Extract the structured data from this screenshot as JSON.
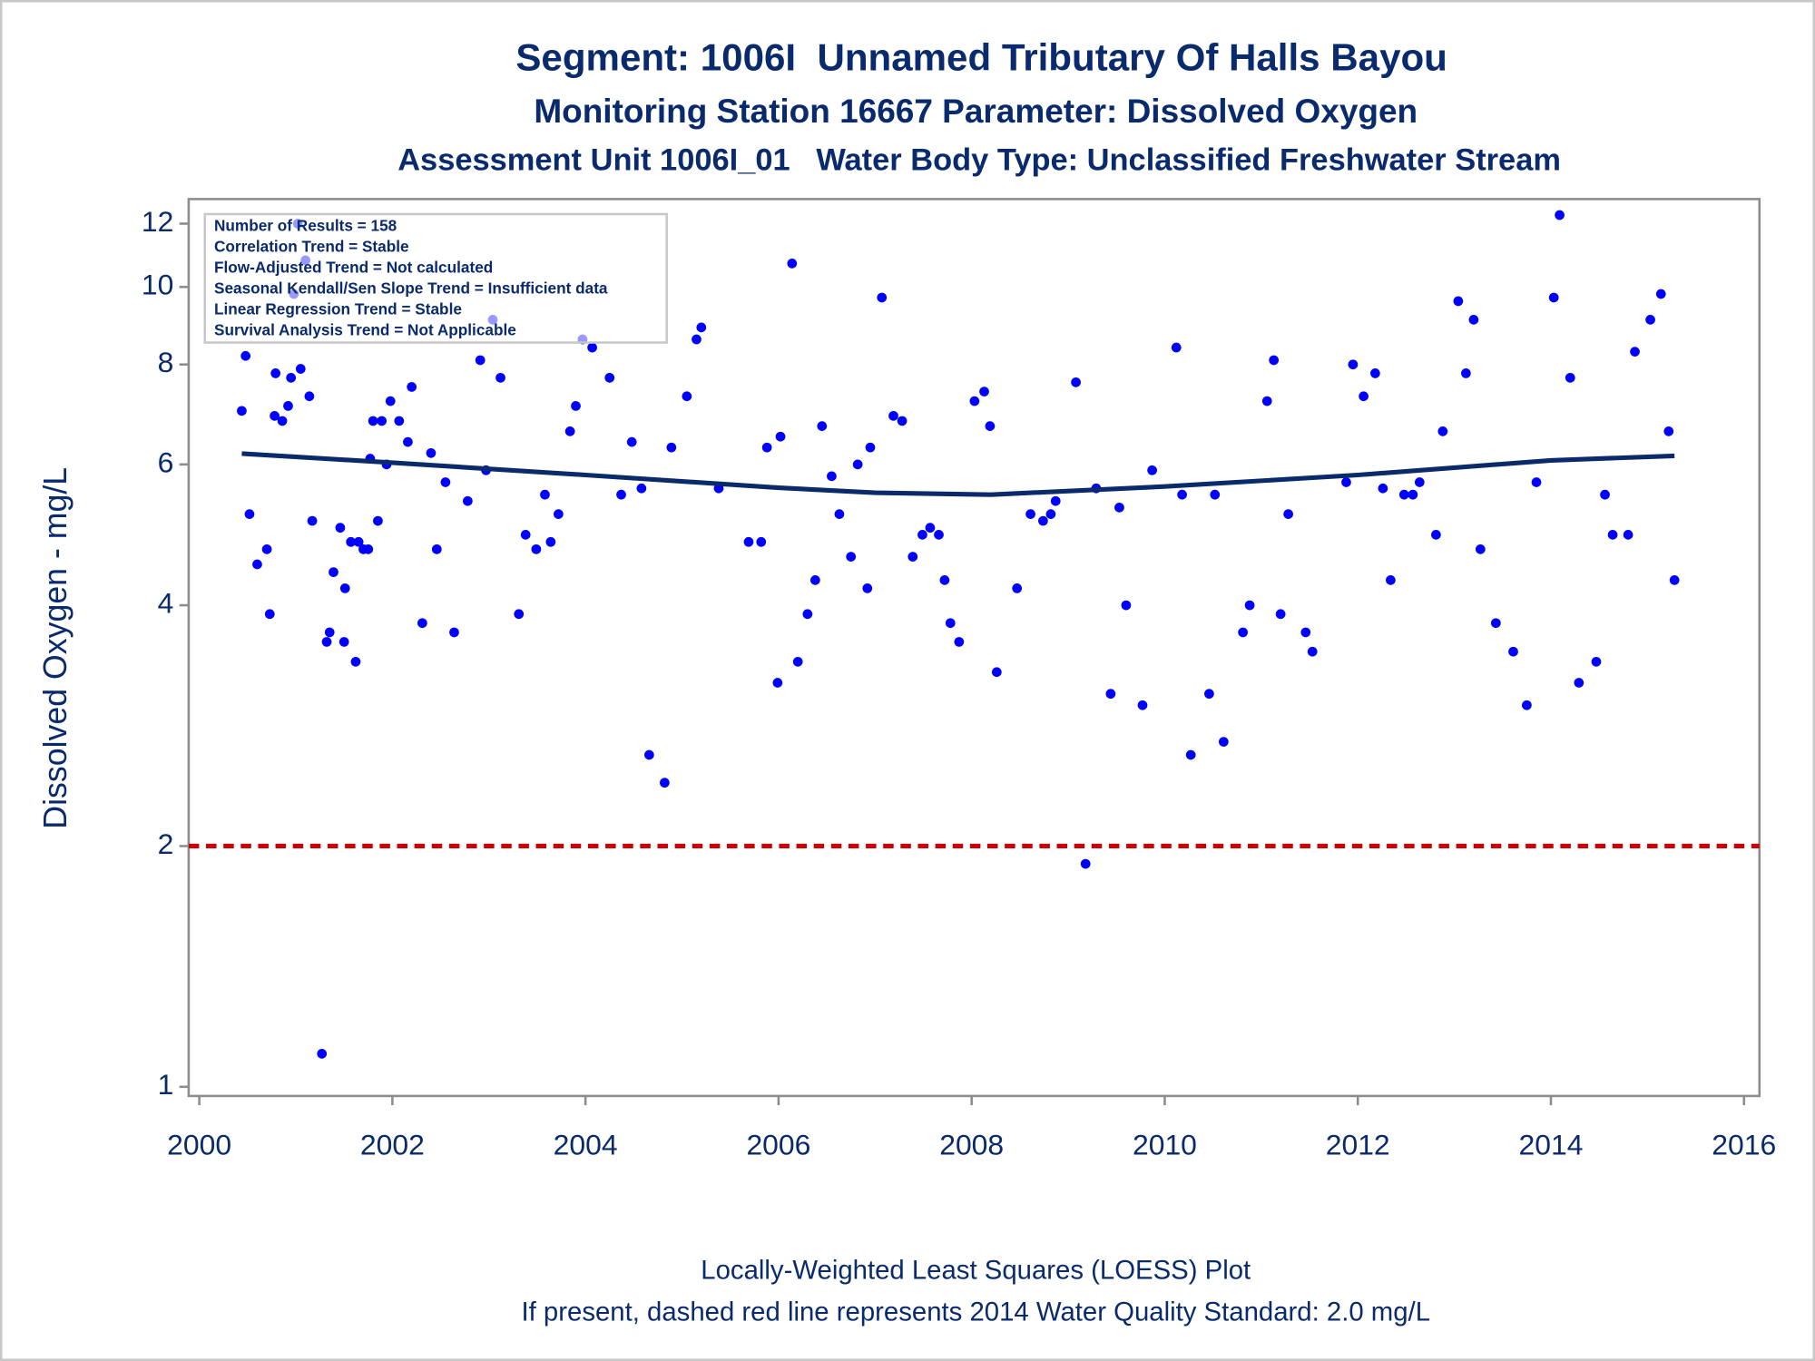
{
  "chart_data": {
    "type": "scatter",
    "titles": [
      "Segment: 1006I  Unnamed Tributary Of Halls Bayou",
      "Monitoring Station 16667 Parameter: Dissolved Oxygen",
      "Assessment Unit 1006I_01   Water Body Type: Unclassified Freshwater Stream"
    ],
    "y_label": "Dissolved Oxygen - mg/L",
    "annotations": [
      "Number of Results = 158",
      "Correlation Trend = Stable",
      "Flow-Adjusted Trend = Not calculated",
      "Seasonal Kendall/Sen Slope Trend = Insufficient data",
      "Linear Regression Trend = Stable",
      "Survival Analysis Trend = Not Applicable"
    ],
    "footnotes": [
      "Locally-Weighted Least Squares (LOESS) Plot",
      "If present, dashed red line represents 2014 Water Quality Standard: 2.0 mg/L"
    ],
    "xlim": [
      1999.89,
      2016.16
    ],
    "xticks": [
      2000,
      2002,
      2004,
      2006,
      2008,
      2010,
      2012,
      2014,
      2016
    ],
    "ylim": [
      0.974,
      12.88
    ],
    "yticks": [
      1,
      2,
      4,
      6,
      8,
      10,
      12
    ],
    "log_y": true,
    "points": {
      "color": "#0000ff",
      "x": [
        2000.44,
        2000.48,
        2000.52,
        2000.6,
        2000.7,
        2000.73,
        2000.79,
        2000.78,
        2000.86,
        2000.92,
        2000.95,
        2000.98,
        2001.02,
        2001.05,
        2001.1,
        2001.14,
        2001.17,
        2001.27,
        2001.32,
        2001.35,
        2001.39,
        2001.46,
        2001.5,
        2001.51,
        2001.57,
        2001.62,
        2001.65,
        2001.7,
        2001.75,
        2001.77,
        2001.8,
        2001.85,
        2001.89,
        2001.94,
        2001.98,
        2002.07,
        2002.16,
        2002.2,
        2002.31,
        2002.4,
        2002.46,
        2002.55,
        2002.64,
        2002.78,
        2002.91,
        2002.97,
        2003.04,
        2003.12,
        2003.31,
        2003.38,
        2003.49,
        2003.58,
        2003.64,
        2003.72,
        2003.84,
        2003.9,
        2003.97,
        2004.07,
        2004.25,
        2004.37,
        2004.48,
        2004.58,
        2004.66,
        2004.82,
        2004.89,
        2005.05,
        2005.15,
        2005.2,
        2005.38,
        2005.69,
        2005.82,
        2005.88,
        2005.99,
        2006.02,
        2006.14,
        2006.2,
        2006.3,
        2006.38,
        2006.45,
        2006.55,
        2006.63,
        2006.75,
        2006.82,
        2006.92,
        2006.95,
        2007.07,
        2007.19,
        2007.28,
        2007.39,
        2007.49,
        2007.57,
        2007.66,
        2007.72,
        2007.78,
        2007.87,
        2008.03,
        2008.13,
        2008.19,
        2008.26,
        2008.47,
        2008.61,
        2008.74,
        2008.82,
        2008.87,
        2009.08,
        2009.18,
        2009.29,
        2009.44,
        2009.53,
        2009.6,
        2009.77,
        2009.87,
        2010.12,
        2010.18,
        2010.27,
        2010.46,
        2010.52,
        2010.61,
        2010.81,
        2010.88,
        2011.06,
        2011.13,
        2011.2,
        2011.28,
        2011.46,
        2011.53,
        2011.88,
        2011.95,
        2012.06,
        2012.18,
        2012.26,
        2012.34,
        2012.48,
        2012.57,
        2012.64,
        2012.81,
        2012.88,
        2013.04,
        2013.12,
        2013.2,
        2013.27,
        2013.43,
        2013.61,
        2013.75,
        2013.85,
        2014.03,
        2014.09,
        2014.2,
        2014.29,
        2014.47,
        2014.56,
        2014.64,
        2014.8,
        2014.87,
        2015.03,
        2015.14,
        2015.22,
        2015.28
      ],
      "y": [
        7.0,
        8.2,
        5.2,
        4.5,
        4.7,
        3.9,
        7.8,
        6.9,
        6.8,
        7.1,
        7.7,
        9.8,
        12.0,
        7.9,
        10.8,
        7.3,
        5.1,
        1.1,
        3.6,
        3.7,
        4.4,
        5.0,
        3.6,
        4.2,
        4.8,
        3.4,
        4.8,
        4.7,
        4.7,
        6.1,
        6.8,
        5.1,
        6.8,
        6.0,
        7.2,
        6.8,
        6.4,
        7.5,
        3.8,
        6.2,
        4.7,
        5.7,
        3.7,
        5.4,
        8.1,
        5.9,
        9.1,
        7.7,
        3.9,
        4.9,
        4.7,
        5.5,
        4.8,
        5.2,
        6.6,
        7.1,
        8.6,
        8.4,
        7.7,
        5.5,
        6.4,
        5.6,
        2.6,
        2.4,
        6.3,
        7.3,
        8.6,
        8.9,
        5.6,
        4.8,
        4.8,
        6.3,
        3.2,
        6.5,
        10.7,
        3.4,
        3.9,
        4.3,
        6.7,
        5.8,
        5.2,
        4.6,
        6.0,
        4.2,
        6.3,
        9.7,
        6.9,
        6.8,
        4.6,
        4.9,
        5.0,
        4.9,
        4.3,
        3.8,
        3.6,
        7.2,
        7.4,
        6.7,
        3.3,
        4.2,
        5.2,
        5.1,
        5.2,
        5.4,
        7.6,
        1.9,
        5.6,
        3.1,
        5.3,
        4.0,
        3.0,
        5.9,
        8.4,
        5.5,
        2.6,
        3.1,
        5.5,
        2.7,
        3.7,
        4.0,
        7.2,
        8.1,
        3.9,
        5.2,
        3.7,
        3.5,
        5.7,
        8.0,
        7.3,
        7.8,
        5.6,
        4.3,
        5.5,
        5.5,
        5.7,
        4.9,
        6.6,
        9.6,
        7.8,
        9.1,
        4.7,
        3.8,
        3.5,
        3.0,
        5.7,
        9.7,
        12.3,
        7.7,
        3.2,
        3.4,
        5.5,
        4.9,
        4.9,
        8.3,
        9.1,
        9.8,
        6.6,
        4.3
      ]
    },
    "loess": {
      "color": "#0b2a6b",
      "x": [
        2000.44,
        2002,
        2004,
        2006,
        2007,
        2008.2,
        2010,
        2012,
        2014,
        2015.28
      ],
      "y": [
        6.19,
        6.03,
        5.82,
        5.61,
        5.53,
        5.5,
        5.63,
        5.82,
        6.07,
        6.15
      ]
    },
    "reference_line": {
      "value": 2,
      "color": "#cc0000"
    }
  }
}
